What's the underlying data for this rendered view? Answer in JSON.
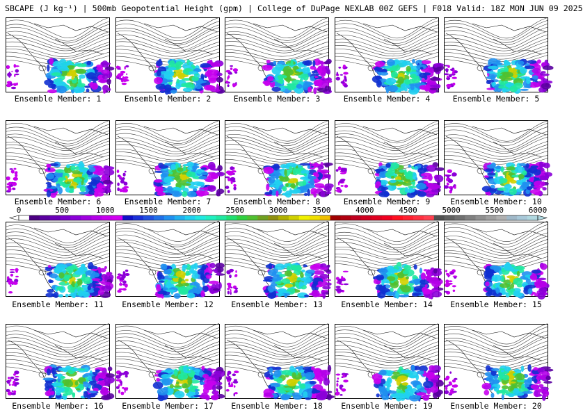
{
  "title": "SBCAPE (J kg⁻¹) | 500mb Geopotential Height (gpm) | College of DuPage NEXLAB 00Z GEFS | F018 Valid: 18Z MON JUN 09 2025",
  "members": [
    {
      "label": "Ensemble Member: 1"
    },
    {
      "label": "Ensemble Member: 2"
    },
    {
      "label": "Ensemble Member: 3"
    },
    {
      "label": "Ensemble Member: 4"
    },
    {
      "label": "Ensemble Member: 5"
    },
    {
      "label": "Ensemble Member: 6"
    },
    {
      "label": "Ensemble Member: 7"
    },
    {
      "label": "Ensemble Member: 8"
    },
    {
      "label": "Ensemble Member: 9"
    },
    {
      "label": "Ensemble Member: 10"
    },
    {
      "label": "Ensemble Member: 11"
    },
    {
      "label": "Ensemble Member: 12"
    },
    {
      "label": "Ensemble Member: 13"
    },
    {
      "label": "Ensemble Member: 14"
    },
    {
      "label": "Ensemble Member: 15"
    },
    {
      "label": "Ensemble Member: 16"
    },
    {
      "label": "Ensemble Member: 17"
    },
    {
      "label": "Ensemble Member: 18"
    },
    {
      "label": "Ensemble Member: 19"
    },
    {
      "label": "Ensemble Member: 20"
    }
  ],
  "colorbar": {
    "ticks": [
      "0",
      "500",
      "1000",
      "1500",
      "2000",
      "2500",
      "3000",
      "3500",
      "4000",
      "4500",
      "5000",
      "5500",
      "6000"
    ],
    "colors": [
      "#ffffff",
      "#4b0082",
      "#5a00a0",
      "#6a00b8",
      "#7a00cc",
      "#8b00d8",
      "#a000e0",
      "#b400e8",
      "#c800ee",
      "#d200f0",
      "#1010c8",
      "#1a30d8",
      "#2050e0",
      "#2070e8",
      "#2090f0",
      "#20b0f0",
      "#20d0f0",
      "#20e8e0",
      "#20f0c0",
      "#20e8a0",
      "#20e070",
      "#30d040",
      "#50c030",
      "#70a020",
      "#909010",
      "#b0b000",
      "#d0d000",
      "#f0f000",
      "#f0e000",
      "#f0c000",
      "#a00000",
      "#b00010",
      "#c00020",
      "#d00020",
      "#e00020",
      "#f00020",
      "#ff1020",
      "#ff2030",
      "#ff3040",
      "#ff4050",
      "#505050",
      "#606060",
      "#707070",
      "#808080",
      "#909090",
      "#a0a0a0",
      "#b0b0b0",
      "#a0b8c8",
      "#a8c8d8",
      "#b0d8e0"
    ],
    "min": 0,
    "max": 6000
  }
}
